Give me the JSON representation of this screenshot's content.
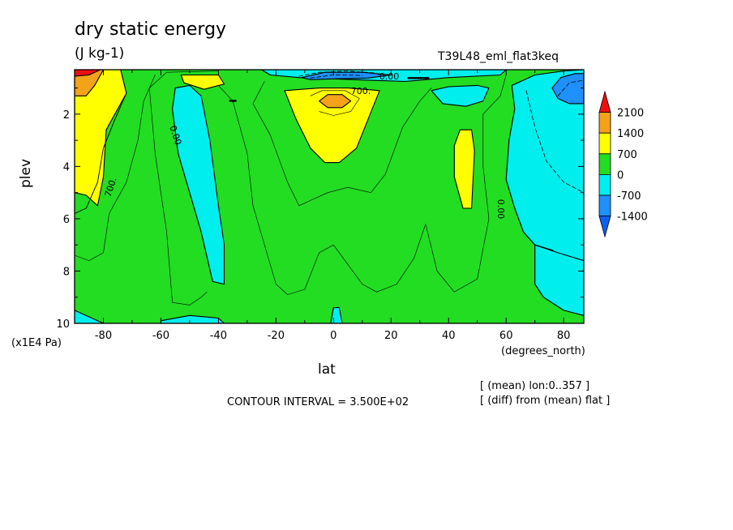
{
  "chart_data": {
    "type": "contour",
    "title": "dry static energy",
    "units": "(J kg-1)",
    "run_label": "T39L48_eml_flat3keq",
    "xlabel": "lat",
    "x_unit": "(degrees_north)",
    "ylabel": "plev",
    "y_unit": "(x1E4 Pa)",
    "xlim": [
      -90,
      87
    ],
    "ylim": [
      10,
      0.3
    ],
    "x_ticks": [
      -80,
      -60,
      -40,
      -20,
      0,
      20,
      40,
      60,
      80
    ],
    "y_ticks": [
      2,
      4,
      6,
      8,
      10
    ],
    "contour_interval_text": "CONTOUR INTERVAL = 3.500E+02",
    "mean_info": "[ (mean) lon:0..357 ]",
    "diff_info": "[ (diff) from (mean) flat ]",
    "colorbar": {
      "levels": [
        "2100",
        "1400",
        "700",
        "0",
        "-700",
        "-1400"
      ],
      "colors": [
        "#ee1010",
        "#f3a21a",
        "#ffff00",
        "#22dd22",
        "#00eeee",
        "#1e90ff",
        "#1060ee"
      ]
    },
    "contour_labels": [
      "0.00",
      "700.",
      "700.",
      "0.00",
      "0.00"
    ],
    "regions": [
      {
        "label": "0 to 700",
        "color": "#22dd22",
        "points": [
          [
            -90,
            0.3
          ],
          [
            87,
            0.3
          ],
          [
            87,
            10
          ],
          [
            -90,
            10
          ]
        ]
      },
      {
        "label": "700 to 1400",
        "color": "#ffff00",
        "points": [
          [
            -90,
            0.3
          ],
          [
            -74,
            0.3
          ],
          [
            -72,
            1.2
          ],
          [
            -79,
            2.6
          ],
          [
            -80,
            4.4
          ],
          [
            -82,
            5.5
          ],
          [
            -86,
            5.1
          ],
          [
            -90,
            5.0
          ]
        ]
      },
      {
        "label": "1400 to 2100",
        "color": "#f3a21a",
        "points": [
          [
            -90,
            0.3
          ],
          [
            -80,
            0.3
          ],
          [
            -83,
            0.9
          ],
          [
            -86,
            1.3
          ],
          [
            -90,
            1.3
          ]
        ]
      },
      {
        "label": "above 2100",
        "color": "#ee1010",
        "points": [
          [
            -90,
            0.3
          ],
          [
            -81,
            0.3
          ],
          [
            -85,
            0.5
          ],
          [
            -90,
            0.55
          ]
        ]
      },
      {
        "label": "700 to 1400",
        "color": "#ffff00",
        "points": [
          [
            -53,
            0.5
          ],
          [
            -40,
            0.5
          ],
          [
            -38,
            0.85
          ],
          [
            -45,
            1.05
          ],
          [
            -52,
            0.8
          ]
        ]
      },
      {
        "label": "700 to 1400",
        "color": "#ffff00",
        "points": [
          [
            -17,
            1.1
          ],
          [
            -5,
            1.0
          ],
          [
            5,
            1.0
          ],
          [
            16,
            1.1
          ],
          [
            12,
            2.2
          ],
          [
            8,
            3.3
          ],
          [
            2,
            3.85
          ],
          [
            -3,
            3.85
          ],
          [
            -8,
            3.3
          ],
          [
            -13,
            2.2
          ]
        ]
      },
      {
        "label": "1400 to 2100",
        "color": "#f3a21a",
        "points": [
          [
            -5,
            1.5
          ],
          [
            -2,
            1.25
          ],
          [
            3,
            1.25
          ],
          [
            6,
            1.5
          ],
          [
            3,
            1.75
          ],
          [
            -2,
            1.75
          ]
        ]
      },
      {
        "label": "700 to 1400",
        "color": "#ffff00",
        "points": [
          [
            42,
            3.2
          ],
          [
            44,
            2.6
          ],
          [
            48,
            2.6
          ],
          [
            49,
            3.4
          ],
          [
            48,
            5.6
          ],
          [
            45,
            5.6
          ],
          [
            42,
            4.4
          ]
        ]
      },
      {
        "label": "-700 to 0",
        "color": "#00eeee",
        "points": [
          [
            -55,
            1.0
          ],
          [
            -50,
            0.9
          ],
          [
            -46,
            1.3
          ],
          [
            -43,
            3.0
          ],
          [
            -40,
            5.5
          ],
          [
            -38,
            7.0
          ],
          [
            -38,
            8.5
          ],
          [
            -42,
            8.4
          ],
          [
            -46,
            6.5
          ],
          [
            -50,
            5.0
          ],
          [
            -54,
            3.5
          ],
          [
            -56,
            1.8
          ]
        ]
      },
      {
        "label": "-700 to 0",
        "color": "#00eeee",
        "points": [
          [
            -25,
            0.3
          ],
          [
            60,
            0.3
          ],
          [
            58,
            0.5
          ],
          [
            40,
            0.6
          ],
          [
            25,
            0.75
          ],
          [
            12,
            0.7
          ],
          [
            0,
            0.65
          ],
          [
            -12,
            0.6
          ],
          [
            -22,
            0.5
          ]
        ]
      },
      {
        "label": "-1400 to -700",
        "color": "#1e90ff",
        "points": [
          [
            -11,
            0.6
          ],
          [
            -3,
            0.4
          ],
          [
            10,
            0.4
          ],
          [
            20,
            0.5
          ],
          [
            12,
            0.62
          ],
          [
            0,
            0.65
          ],
          [
            -8,
            0.68
          ]
        ]
      },
      {
        "label": "-700 to 0",
        "color": "#00eeee",
        "points": [
          [
            34,
            1.1
          ],
          [
            40,
            0.95
          ],
          [
            50,
            0.9
          ],
          [
            54,
            1.0
          ],
          [
            52,
            1.5
          ],
          [
            46,
            1.7
          ],
          [
            38,
            1.6
          ]
        ]
      },
      {
        "label": "-700 to 0",
        "color": "#00eeee",
        "points": [
          [
            62,
            0.9
          ],
          [
            70,
            0.5
          ],
          [
            80,
            0.35
          ],
          [
            87,
            0.3
          ],
          [
            87,
            8.3
          ],
          [
            83,
            7.8
          ],
          [
            76,
            7.2
          ],
          [
            70,
            7.0
          ],
          [
            66,
            6.5
          ],
          [
            63,
            5.6
          ],
          [
            60,
            4.5
          ],
          [
            61,
            3.0
          ],
          [
            63,
            1.8
          ]
        ]
      },
      {
        "label": "-1400 to -700",
        "color": "#1e90ff",
        "points": [
          [
            76,
            1.0
          ],
          [
            79,
            0.6
          ],
          [
            84,
            0.45
          ],
          [
            87,
            0.45
          ],
          [
            87,
            1.6
          ],
          [
            82,
            1.6
          ],
          [
            78,
            1.4
          ]
        ]
      },
      {
        "label": "-700 to 0",
        "color": "#00eeee",
        "points": [
          [
            70,
            7.0
          ],
          [
            78,
            7.3
          ],
          [
            87,
            7.6
          ],
          [
            87,
            9.7
          ],
          [
            80,
            9.5
          ],
          [
            73,
            9.0
          ],
          [
            70,
            8.5
          ]
        ]
      },
      {
        "label": "-700 to 0",
        "color": "#00eeee",
        "points": [
          [
            -90,
            9.5
          ],
          [
            -85,
            9.75
          ],
          [
            -80,
            10
          ],
          [
            -90,
            10
          ]
        ]
      },
      {
        "label": "-700 to 0",
        "color": "#00eeee",
        "points": [
          [
            -60,
            9.9
          ],
          [
            -50,
            9.7
          ],
          [
            -40,
            9.8
          ],
          [
            -38,
            10
          ],
          [
            -60,
            10
          ]
        ]
      },
      {
        "label": "-700 to 0",
        "color": "#00eeee",
        "points": [
          [
            -1,
            10
          ],
          [
            0,
            9.4
          ],
          [
            2,
            9.4
          ],
          [
            3,
            10
          ]
        ]
      }
    ],
    "contour_lines": [
      {
        "style": "solid",
        "width": 0.9,
        "points": [
          [
            -74,
            0.3
          ],
          [
            -72,
            1.2
          ],
          [
            -76,
            2.2
          ],
          [
            -80,
            3.3
          ],
          [
            -82,
            4.6
          ],
          [
            -86,
            5.6
          ],
          [
            -90,
            5.8
          ]
        ]
      },
      {
        "style": "solid",
        "width": 0.6,
        "points": [
          [
            -62,
            0.5
          ],
          [
            -66,
            1.5
          ],
          [
            -68,
            3.0
          ],
          [
            -72,
            4.6
          ],
          [
            -78,
            5.8
          ],
          [
            -80,
            7.3
          ],
          [
            -85,
            7.6
          ],
          [
            -90,
            7.4
          ]
        ]
      },
      {
        "style": "solid",
        "width": 0.6,
        "points": [
          [
            -40,
            0.35
          ],
          [
            -58,
            0.4
          ],
          [
            -64,
            1.0
          ],
          [
            -62,
            3.5
          ],
          [
            -58,
            6.5
          ],
          [
            -56,
            9.2
          ],
          [
            -50,
            9.3
          ],
          [
            -46,
            9.0
          ],
          [
            -44,
            8.8
          ]
        ]
      },
      {
        "style": "solid",
        "width": 0.6,
        "points": [
          [
            -40,
            0.9
          ],
          [
            -35,
            1.5
          ],
          [
            -30,
            3.5
          ],
          [
            -28,
            5.5
          ],
          [
            -24,
            7.0
          ],
          [
            -20,
            8.5
          ],
          [
            -16,
            8.9
          ],
          [
            -10,
            8.7
          ],
          [
            -5,
            7.3
          ],
          [
            0,
            7.0
          ],
          [
            10,
            8.5
          ],
          [
            15,
            8.8
          ],
          [
            22,
            8.5
          ],
          [
            28,
            7.5
          ],
          [
            32,
            6.2
          ],
          [
            36,
            8.0
          ],
          [
            42,
            8.8
          ],
          [
            50,
            8.3
          ],
          [
            54,
            6.0
          ],
          [
            52,
            4.0
          ],
          [
            52,
            2.0
          ],
          [
            58,
            1.3
          ],
          [
            60,
            0.5
          ]
        ]
      },
      {
        "style": "solid",
        "width": 0.6,
        "points": [
          [
            -24,
            0.75
          ],
          [
            -28,
            1.6
          ],
          [
            -22,
            2.8
          ],
          [
            -16,
            4.6
          ],
          [
            -12,
            5.5
          ],
          [
            -2,
            5.0
          ],
          [
            5,
            4.8
          ],
          [
            13,
            5.0
          ],
          [
            18,
            4.3
          ],
          [
            24,
            2.5
          ],
          [
            30,
            1.5
          ],
          [
            34,
            1.0
          ]
        ]
      },
      {
        "style": "solid",
        "width": 0.6,
        "points": [
          [
            -8,
            1.3
          ],
          [
            -4,
            1.1
          ],
          [
            4,
            1.1
          ],
          [
            9,
            1.4
          ],
          [
            6,
            1.9
          ],
          [
            0,
            2.05
          ],
          [
            -5,
            1.9
          ]
        ]
      },
      {
        "style": "dashed",
        "width": 0.8,
        "points": [
          [
            -12,
            0.55
          ],
          [
            -5,
            0.4
          ],
          [
            5,
            0.35
          ],
          [
            14,
            0.42
          ],
          [
            18,
            0.55
          ]
        ]
      },
      {
        "style": "dashed",
        "width": 0.8,
        "points": [
          [
            -8,
            0.62
          ],
          [
            0,
            0.5
          ],
          [
            10,
            0.52
          ]
        ]
      },
      {
        "style": "dashed",
        "width": 0.8,
        "points": [
          [
            67,
            1.1
          ],
          [
            70,
            2.5
          ],
          [
            74,
            3.8
          ],
          [
            80,
            4.6
          ],
          [
            87,
            5.0
          ]
        ]
      },
      {
        "style": "dashed",
        "width": 0.8,
        "points": [
          [
            78,
            1.3
          ],
          [
            82,
            0.8
          ],
          [
            87,
            0.7
          ]
        ]
      },
      {
        "style": "solid",
        "width": 2.4,
        "points": [
          [
            26,
            0.62
          ],
          [
            33,
            0.62
          ]
        ]
      },
      {
        "style": "solid",
        "width": 2.4,
        "points": [
          [
            -36,
            1.49
          ],
          [
            -34,
            1.49
          ]
        ]
      }
    ]
  }
}
